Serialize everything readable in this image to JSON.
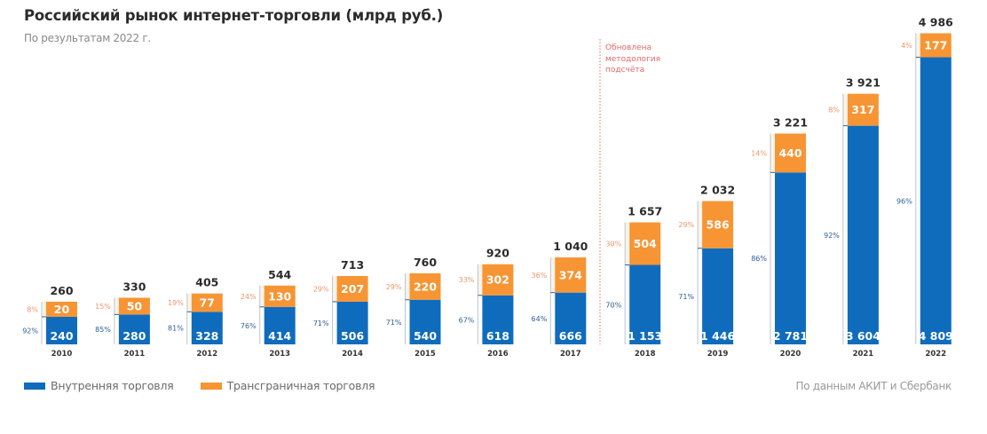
{
  "header": {
    "title": "Российский рынок интернет-торговли (млрд руб.)",
    "subtitle": "По результатам 2022 г."
  },
  "annotation": {
    "text_lines": [
      "Обновлена",
      "методология",
      "подсчёта"
    ],
    "after_category": "2017"
  },
  "source": "По данным АКИТ и Сбербанк",
  "colors": {
    "domestic": "#0f6cbd",
    "crossborder": "#f79534",
    "domestic_pct": "#2e5e9a",
    "crossborder_pct": "#f0956a",
    "annotation": "#e2686b"
  },
  "chart_data": {
    "type": "bar",
    "stacked": true,
    "title": "Российский рынок интернет-торговли (млрд руб.)",
    "subtitle": "По результатам 2022 г.",
    "xlabel": "",
    "ylabel": "",
    "grid": false,
    "legend_position": "bottom-left",
    "categories": [
      "2010",
      "2011",
      "2012",
      "2013",
      "2014",
      "2015",
      "2016",
      "2017",
      "2018",
      "2019",
      "2020",
      "2021",
      "2022"
    ],
    "series": [
      {
        "name": "Внутренняя торговля",
        "values": [
          240,
          280,
          328,
          414,
          506,
          540,
          618,
          666,
          1153,
          1446,
          2781,
          3604,
          4809
        ],
        "labels": [
          "240",
          "280",
          "328",
          "414",
          "506",
          "540",
          "618",
          "666",
          "1 153",
          "1 446",
          "2 781",
          "3 604",
          "4 809"
        ],
        "share_labels": [
          "92%",
          "85%",
          "81%",
          "76%",
          "71%",
          "71%",
          "67%",
          "64%",
          "70%",
          "71%",
          "86%",
          "92%",
          "96%"
        ]
      },
      {
        "name": "Трансграничная торговля",
        "values": [
          20,
          50,
          77,
          130,
          207,
          220,
          302,
          374,
          504,
          586,
          440,
          317,
          177
        ],
        "labels": [
          "20",
          "50",
          "77",
          "130",
          "207",
          "220",
          "302",
          "374",
          "504",
          "586",
          "440",
          "317",
          "177"
        ],
        "share_labels": [
          "8%",
          "15%",
          "19%",
          "24%",
          "29%",
          "29%",
          "33%",
          "36%",
          "30%",
          "29%",
          "14%",
          "8%",
          "4%"
        ]
      }
    ],
    "totals": [
      260,
      330,
      405,
      544,
      713,
      760,
      920,
      1040,
      1657,
      2032,
      3221,
      3921,
      4986
    ],
    "total_labels": [
      "260",
      "330",
      "405",
      "544",
      "713",
      "760",
      "920",
      "1 040",
      "1 657",
      "2 032",
      "3 221",
      "3 921",
      "4 986"
    ],
    "annotations": [
      {
        "text": "Обновлена методология подсчёта",
        "position": "between 2017 and 2018"
      }
    ]
  }
}
